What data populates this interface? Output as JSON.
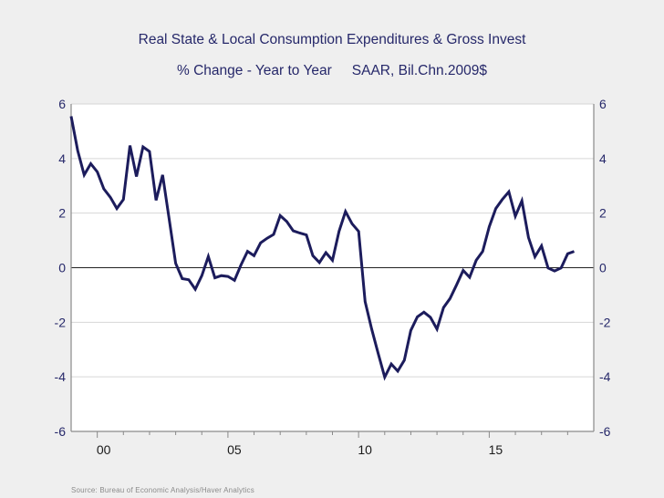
{
  "chart_data": {
    "type": "line",
    "title": "Real State & Local Consumption Expenditures & Gross Invest",
    "subtitle_left": "% Change - Year to Year",
    "subtitle_right": "SAAR, Bil.Chn.2009$",
    "xlabel": "",
    "ylabel": "",
    "xlim": [
      1999,
      2019
    ],
    "ylim": [
      -6,
      6
    ],
    "y_ticks": [
      -6,
      -4,
      -2,
      0,
      2,
      4,
      6
    ],
    "y_tick_labels": [
      "-6",
      "-4",
      "-2",
      "0",
      "2",
      "4",
      "6"
    ],
    "x_major_ticks": [
      2000,
      2005,
      2010,
      2015
    ],
    "x_tick_labels": [
      "00",
      "05",
      "10",
      "15"
    ],
    "x_minor_ticks": [
      2000,
      2001,
      2002,
      2003,
      2004,
      2005,
      2006,
      2007,
      2008,
      2009,
      2010,
      2011,
      2012,
      2013,
      2014,
      2015,
      2016,
      2017,
      2018
    ],
    "grid": true,
    "zero_line": true,
    "dual_y_axis": true,
    "frequency": "quarterly",
    "x_start": 1999.0,
    "x_step": 0.25,
    "series": [
      {
        "name": "Real State & Local Consumption Expenditures & Gross Invest, % Change Y/Y",
        "color": "#1c1c5c",
        "values": [
          5.55,
          4.29,
          3.4,
          3.81,
          3.51,
          2.89,
          2.58,
          2.17,
          2.5,
          4.48,
          3.34,
          4.43,
          4.26,
          2.47,
          3.4,
          1.8,
          0.16,
          -0.4,
          -0.44,
          -0.79,
          -0.29,
          0.41,
          -0.37,
          -0.29,
          -0.32,
          -0.46,
          0.1,
          0.6,
          0.44,
          0.91,
          1.08,
          1.22,
          1.91,
          1.69,
          1.35,
          1.27,
          1.2,
          0.44,
          0.19,
          0.55,
          0.27,
          1.33,
          2.06,
          1.61,
          1.33,
          -1.24,
          -2.25,
          -3.14,
          -4.01,
          -3.53,
          -3.79,
          -3.39,
          -2.3,
          -1.8,
          -1.63,
          -1.82,
          -2.25,
          -1.46,
          -1.13,
          -0.63,
          -0.1,
          -0.35,
          0.27,
          0.6,
          1.5,
          2.17,
          2.5,
          2.78,
          1.89,
          2.45,
          1.11,
          0.4,
          0.8,
          -0.01,
          -0.12,
          -0.01,
          0.51,
          0.6
        ]
      }
    ],
    "source": "Source:  Bureau of Economic Analysis/Haver Analytics",
    "colors": {
      "title": "#26286a",
      "axis_label": "#26286a",
      "grid": "#d6d6d6",
      "axis": "#8a8a8a",
      "zero_line": "#222222",
      "plot_bg": "#ffffff"
    }
  }
}
